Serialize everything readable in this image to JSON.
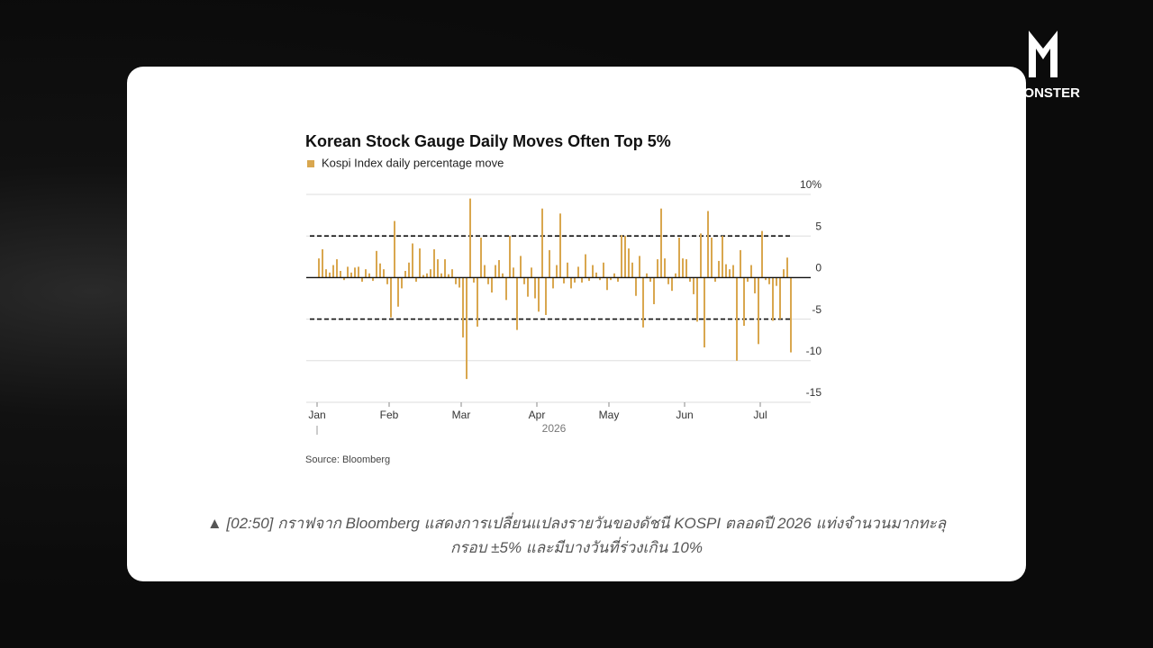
{
  "logo": {
    "text": "Y MONSTER"
  },
  "chart_data": {
    "type": "bar",
    "title": "Korean Stock Gauge Daily Moves Often Top 5%",
    "series": [
      {
        "name": "Kospi Index daily percentage move",
        "color": "#d9a74f",
        "values": [
          2.3,
          3.4,
          1,
          0.6,
          1.5,
          2.2,
          0.8,
          -0.3,
          1.3,
          0.6,
          1.2,
          1.3,
          -0.5,
          1,
          0.5,
          -0.4,
          3.2,
          1.7,
          1,
          -0.8,
          -4.8,
          6.8,
          -3.5,
          -1.3,
          0.8,
          1.8,
          4.1,
          -0.5,
          3.5,
          0.3,
          0.5,
          1,
          3.4,
          2.2,
          0.5,
          2.2,
          0.4,
          1,
          -0.8,
          -1.2,
          -7.2,
          -12.2,
          9.5,
          -0.6,
          -5.9,
          4.8,
          1.5,
          -0.8,
          -1.8,
          1.5,
          2.1,
          0.5,
          -2.7,
          5,
          1.2,
          -6.3,
          2.6,
          -0.8,
          -2.3,
          1.2,
          -2.5,
          -4.1,
          8.3,
          -4.5,
          3.3,
          -1.3,
          1.5,
          7.7,
          -0.7,
          1.8,
          -1.3,
          -0.6,
          1.3,
          -0.6,
          2.8,
          -0.4,
          1.5,
          0.6,
          -0.3,
          1.8,
          -1.5,
          -0.3,
          0.5,
          -0.5,
          5.1,
          5,
          3.5,
          1.8,
          -2.2,
          2.6,
          -6,
          0.5,
          -0.5,
          -3.2,
          2.2,
          8.3,
          2.3,
          -0.8,
          -1.6,
          0.5,
          4.8,
          2.3,
          2.2,
          -0.5,
          -2,
          -5.3,
          5.3,
          -8.4,
          8,
          4.8,
          -0.5,
          2,
          5,
          1.6,
          1,
          1.5,
          -10,
          3.3,
          -5.8,
          -0.5,
          1.5,
          -1.9,
          -8,
          5.6,
          -0.3,
          -0.8,
          -5.2,
          -1,
          -5,
          1,
          2.4,
          -9
        ]
      }
    ],
    "categories": [
      "Jan",
      null,
      null,
      null,
      null,
      null,
      null,
      null,
      null,
      null,
      null,
      null,
      null,
      null,
      null,
      null,
      null,
      null,
      null,
      null,
      "Feb",
      null,
      null,
      null,
      null,
      null,
      null,
      null,
      null,
      null,
      null,
      null,
      null,
      null,
      null,
      null,
      null,
      null,
      null,
      null,
      "Mar",
      null,
      null,
      null,
      null,
      null,
      null,
      null,
      null,
      null,
      null,
      null,
      null,
      null,
      null,
      null,
      null,
      null,
      null,
      null,
      null,
      "Apr",
      null,
      null,
      null,
      null,
      null,
      null,
      null,
      null,
      null,
      null,
      null,
      null,
      null,
      null,
      null,
      null,
      null,
      null,
      null,
      "May",
      null,
      null,
      null,
      null,
      null,
      null,
      null,
      null,
      null,
      null,
      null,
      null,
      null,
      null,
      null,
      null,
      null,
      null,
      null,
      null,
      "Jun",
      null,
      null,
      null,
      null,
      null,
      null,
      null,
      null,
      null,
      null,
      null,
      null,
      null,
      null,
      null,
      null,
      null,
      null,
      null,
      null,
      "Jul",
      null,
      null,
      null,
      null,
      null,
      null,
      null,
      null
    ],
    "x_label": "2026",
    "ylim": [
      -15,
      10
    ],
    "yticks": [
      {
        "value": 10,
        "label": "10%"
      },
      5,
      0,
      -5,
      -10,
      -15
    ],
    "reference_lines": [
      5,
      -5
    ],
    "grid": true,
    "source": "Source: Bloomberg"
  },
  "caption": {
    "lines": [
      "▲ [02:50] กราฟจาก Bloomberg แสดงการเปลี่ยนแปลงรายวันของดัชนี KOSPI ตลอดปี 2026 แท่งจำนวนมากทะลุ",
      "กรอบ ±5% และมีบางวันที่ร่วงเกิน 10%"
    ]
  }
}
